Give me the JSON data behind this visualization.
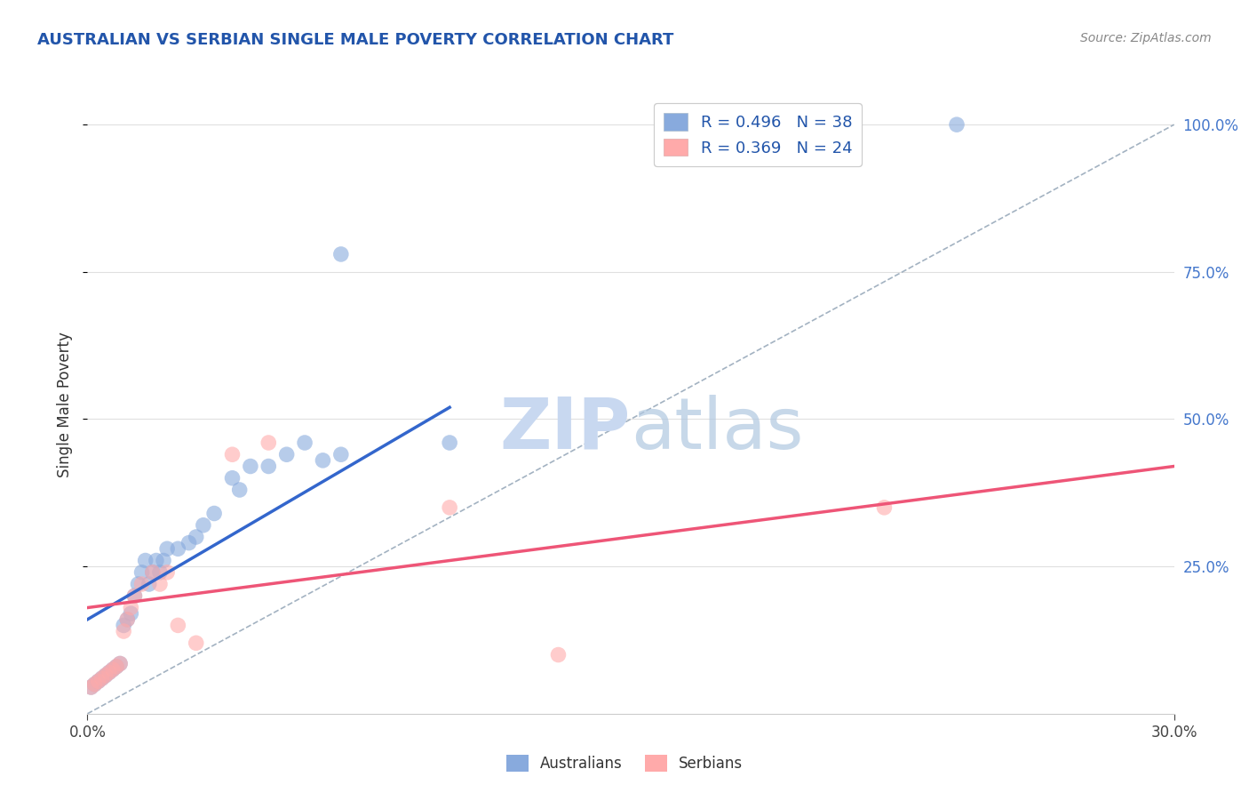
{
  "title": "AUSTRALIAN VS SERBIAN SINGLE MALE POVERTY CORRELATION CHART",
  "source": "Source: ZipAtlas.com",
  "ylabel": "Single Male Poverty",
  "xlim": [
    0.0,
    0.3
  ],
  "ylim": [
    0.0,
    1.05
  ],
  "legend_entries": [
    {
      "label": "R = 0.496   N = 38",
      "color": "#88aadd"
    },
    {
      "label": "R = 0.369   N = 24",
      "color": "#ffaaaa"
    }
  ],
  "aus_color": "#88aadd",
  "ser_color": "#ffaaaa",
  "aus_line_color": "#3366cc",
  "ser_line_color": "#ee5577",
  "diag_line_color": "#99aabb",
  "background_color": "#ffffff",
  "grid_color": "#e0e0e0",
  "aus_scatter_x": [
    0.001,
    0.002,
    0.003,
    0.004,
    0.005,
    0.006,
    0.007,
    0.008,
    0.009,
    0.01,
    0.011,
    0.012,
    0.013,
    0.014,
    0.015,
    0.016,
    0.017,
    0.018,
    0.019,
    0.02,
    0.021,
    0.022,
    0.025,
    0.028,
    0.03,
    0.032,
    0.035,
    0.04,
    0.042,
    0.045,
    0.05,
    0.055,
    0.06,
    0.065,
    0.07,
    0.1,
    0.07,
    0.24
  ],
  "aus_scatter_y": [
    0.045,
    0.05,
    0.055,
    0.06,
    0.065,
    0.07,
    0.075,
    0.08,
    0.085,
    0.15,
    0.16,
    0.17,
    0.2,
    0.22,
    0.24,
    0.26,
    0.22,
    0.24,
    0.26,
    0.24,
    0.26,
    0.28,
    0.28,
    0.29,
    0.3,
    0.32,
    0.34,
    0.4,
    0.38,
    0.42,
    0.42,
    0.44,
    0.46,
    0.43,
    0.44,
    0.46,
    0.78,
    1.0
  ],
  "ser_scatter_x": [
    0.001,
    0.002,
    0.003,
    0.004,
    0.005,
    0.006,
    0.007,
    0.008,
    0.009,
    0.01,
    0.011,
    0.012,
    0.013,
    0.015,
    0.018,
    0.02,
    0.022,
    0.025,
    0.03,
    0.04,
    0.05,
    0.1,
    0.13,
    0.22
  ],
  "ser_scatter_y": [
    0.045,
    0.05,
    0.055,
    0.06,
    0.065,
    0.07,
    0.075,
    0.08,
    0.085,
    0.14,
    0.16,
    0.18,
    0.2,
    0.22,
    0.24,
    0.22,
    0.24,
    0.15,
    0.12,
    0.44,
    0.46,
    0.35,
    0.1,
    0.35
  ],
  "aus_line_x": [
    0.0,
    0.1
  ],
  "aus_line_y": [
    0.16,
    0.52
  ],
  "ser_line_x": [
    0.0,
    0.3
  ],
  "ser_line_y": [
    0.18,
    0.42
  ],
  "diag_line_x": [
    0.0,
    0.3
  ],
  "diag_line_y": [
    0.0,
    1.0
  ],
  "right_yticks": [
    0.25,
    0.5,
    0.75,
    1.0
  ],
  "right_yticklabels": [
    "25.0%",
    "50.0%",
    "75.0%",
    "100.0%"
  ]
}
